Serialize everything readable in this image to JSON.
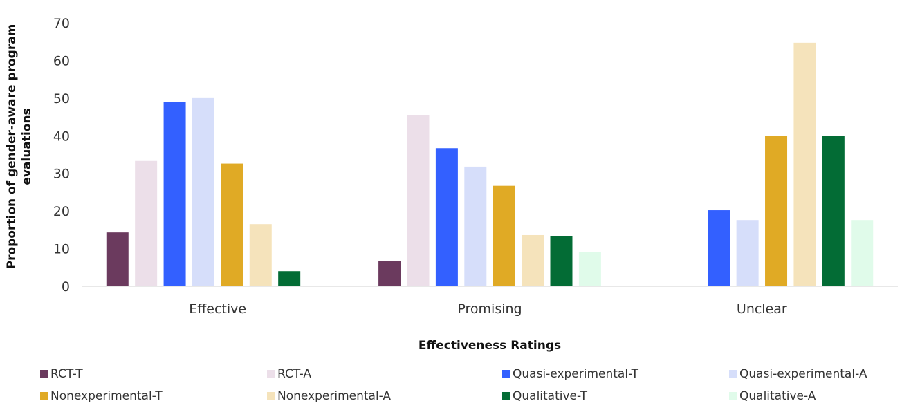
{
  "chart_data": {
    "type": "bar",
    "xlabel": "Effectiveness Ratings",
    "ylabel": "Proportion of gender-aware program evaluations",
    "ylim": [
      0,
      70
    ],
    "yticks": [
      0,
      10,
      20,
      30,
      40,
      50,
      60,
      70
    ],
    "grid": false,
    "legend_position": "bottom",
    "categories": [
      "Effective",
      "Promising",
      "Unclear"
    ],
    "series": [
      {
        "name": "RCT-T",
        "color": "#6b3a5e",
        "values": [
          14.3,
          6.7,
          0
        ]
      },
      {
        "name": "RCT-A",
        "color": "#ecdfe9",
        "values": [
          33.3,
          45.5,
          0
        ]
      },
      {
        "name": "Quasi-experimental-T",
        "color": "#3360ff",
        "values": [
          49.0,
          36.7,
          20.2
        ]
      },
      {
        "name": "Quasi-experimental-A",
        "color": "#d6defa",
        "values": [
          50.0,
          31.8,
          17.6
        ]
      },
      {
        "name": "Nonexperimental-T",
        "color": "#e0aa25",
        "values": [
          32.6,
          26.7,
          40.0
        ]
      },
      {
        "name": "Nonexperimental-A",
        "color": "#f5e3bb",
        "values": [
          16.5,
          13.6,
          64.7
        ]
      },
      {
        "name": "Qualitative-T",
        "color": "#036c35",
        "values": [
          4.0,
          13.3,
          40.0
        ]
      },
      {
        "name": "Qualitative-A",
        "color": "#e0fbea",
        "values": [
          0,
          9.1,
          17.6
        ]
      }
    ]
  }
}
